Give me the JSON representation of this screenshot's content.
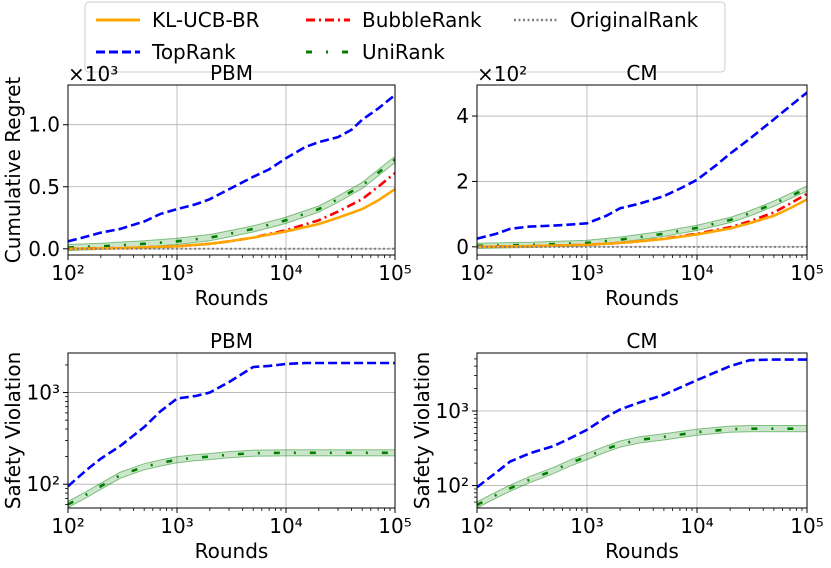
{
  "legend": {
    "entries": [
      {
        "label": "KL-UCB-BR",
        "color": "#ffa500",
        "dash": "solid"
      },
      {
        "label": "TopRank",
        "color": "#0000ff",
        "dash": "dashed"
      },
      {
        "label": "BubbleRank",
        "color": "#ff0000",
        "dash": "dashdot"
      },
      {
        "label": "UniRank",
        "color": "#008000",
        "dash": "sparse"
      },
      {
        "label": "OriginalRank",
        "color": "#808080",
        "dash": "dotted"
      }
    ]
  },
  "chart_data": [
    {
      "type": "line",
      "title": "PBM",
      "xlabel": "Rounds",
      "ylabel": "Cumulative Regret",
      "xscale": "log",
      "xlim": [
        100,
        100000
      ],
      "ylim": [
        -0.05,
        1.32
      ],
      "multiplier": "×10³",
      "x_ticks": [
        "10²",
        "10³",
        "10⁴",
        "10⁵"
      ],
      "y_ticks": [
        "0.0",
        "0.5",
        "1.0"
      ],
      "y_tick_values": [
        0,
        0.5,
        1.0
      ],
      "grid": true,
      "series": [
        {
          "name": "TopRank",
          "x": [
            100,
            150,
            200,
            300,
            500,
            700,
            1000,
            1500,
            2000,
            3000,
            5000,
            7000,
            10000,
            15000,
            20000,
            30000,
            40000,
            50000,
            70000,
            100000
          ],
          "y": [
            0.06,
            0.1,
            0.13,
            0.16,
            0.22,
            0.28,
            0.32,
            0.36,
            0.4,
            0.48,
            0.58,
            0.64,
            0.73,
            0.82,
            0.86,
            0.9,
            0.96,
            1.04,
            1.13,
            1.24
          ]
        },
        {
          "name": "UniRank",
          "x": [
            100,
            200,
            500,
            1000,
            2000,
            3000,
            5000,
            10000,
            20000,
            30000,
            50000,
            100000
          ],
          "y": [
            0.01,
            0.02,
            0.04,
            0.06,
            0.09,
            0.12,
            0.16,
            0.23,
            0.32,
            0.4,
            0.51,
            0.72
          ],
          "band": 0.025
        },
        {
          "name": "BubbleRank",
          "x": [
            100,
            300,
            1000,
            2000,
            3000,
            5000,
            10000,
            20000,
            30000,
            50000,
            70000,
            100000
          ],
          "y": [
            0.0,
            0.005,
            0.02,
            0.04,
            0.06,
            0.09,
            0.15,
            0.23,
            0.3,
            0.4,
            0.5,
            0.61
          ]
        },
        {
          "name": "KL-UCB-BR",
          "x": [
            100,
            300,
            1000,
            2000,
            3000,
            5000,
            10000,
            20000,
            30000,
            50000,
            70000,
            100000
          ],
          "y": [
            0.0,
            0.005,
            0.02,
            0.04,
            0.06,
            0.09,
            0.14,
            0.2,
            0.25,
            0.32,
            0.39,
            0.48
          ]
        },
        {
          "name": "OriginalRank",
          "x": [
            100,
            100000
          ],
          "y": [
            0.0,
            0.0
          ]
        }
      ]
    },
    {
      "type": "line",
      "title": "CM",
      "xlabel": "Rounds",
      "ylabel": "",
      "xscale": "log",
      "xlim": [
        100,
        100000
      ],
      "ylim": [
        -0.25,
        4.95
      ],
      "multiplier": "×10²",
      "x_ticks": [
        "10²",
        "10³",
        "10⁴",
        "10⁵"
      ],
      "y_ticks": [
        "0",
        "2",
        "4"
      ],
      "y_tick_values": [
        0,
        2,
        4
      ],
      "grid": true,
      "series": [
        {
          "name": "TopRank",
          "x": [
            100,
            150,
            200,
            300,
            500,
            700,
            1000,
            1500,
            2000,
            3000,
            5000,
            7000,
            10000,
            15000,
            20000,
            30000,
            50000,
            70000,
            100000
          ],
          "y": [
            0.25,
            0.4,
            0.55,
            0.62,
            0.65,
            0.68,
            0.72,
            0.95,
            1.18,
            1.32,
            1.55,
            1.78,
            2.05,
            2.5,
            2.85,
            3.3,
            3.9,
            4.3,
            4.72
          ]
        },
        {
          "name": "UniRank",
          "x": [
            100,
            300,
            1000,
            2000,
            3000,
            5000,
            10000,
            20000,
            30000,
            50000,
            70000,
            100000
          ],
          "y": [
            0.03,
            0.06,
            0.12,
            0.22,
            0.3,
            0.4,
            0.58,
            0.82,
            1.02,
            1.32,
            1.55,
            1.78
          ],
          "band": 0.08
        },
        {
          "name": "BubbleRank",
          "x": [
            100,
            300,
            1000,
            2000,
            3000,
            5000,
            10000,
            20000,
            30000,
            50000,
            70000,
            100000
          ],
          "y": [
            0.0,
            0.02,
            0.06,
            0.12,
            0.17,
            0.25,
            0.4,
            0.6,
            0.78,
            1.05,
            1.32,
            1.62
          ]
        },
        {
          "name": "KL-UCB-BR",
          "x": [
            100,
            300,
            1000,
            2000,
            3000,
            5000,
            10000,
            20000,
            30000,
            50000,
            70000,
            100000
          ],
          "y": [
            0.0,
            0.02,
            0.06,
            0.12,
            0.17,
            0.24,
            0.38,
            0.56,
            0.72,
            0.95,
            1.18,
            1.45
          ]
        },
        {
          "name": "OriginalRank",
          "x": [
            100,
            100000
          ],
          "y": [
            0.0,
            0.0
          ]
        }
      ]
    },
    {
      "type": "line",
      "title": "PBM",
      "xlabel": "Rounds",
      "ylabel": "Safety Violation",
      "xscale": "log",
      "yscale": "log",
      "xlim": [
        100,
        100000
      ],
      "ylim": [
        55,
        2700
      ],
      "x_ticks": [
        "10²",
        "10³",
        "10⁴",
        "10⁵"
      ],
      "y_ticks": [
        "10²",
        "10³"
      ],
      "y_tick_values": [
        100,
        1000
      ],
      "grid": true,
      "series": [
        {
          "name": "TopRank",
          "x": [
            100,
            150,
            200,
            300,
            500,
            700,
            1000,
            1500,
            2000,
            3000,
            5000,
            7000,
            10000,
            15000,
            30000,
            100000
          ],
          "y": [
            95,
            145,
            190,
            260,
            420,
            620,
            860,
            920,
            1000,
            1300,
            1900,
            1950,
            2050,
            2100,
            2100,
            2100
          ]
        },
        {
          "name": "UniRank",
          "x": [
            100,
            150,
            200,
            300,
            500,
            700,
            1000,
            1500,
            2000,
            3000,
            5000,
            10000,
            30000,
            100000
          ],
          "y": [
            60,
            78,
            95,
            125,
            155,
            170,
            185,
            195,
            200,
            210,
            218,
            220,
            220,
            220
          ],
          "band_ratio": 1.08
        }
      ]
    },
    {
      "type": "line",
      "title": "CM",
      "xlabel": "Rounds",
      "ylabel": "Safety Violation",
      "xscale": "log",
      "yscale": "log",
      "xlim": [
        100,
        100000
      ],
      "ylim": [
        50,
        6000
      ],
      "x_ticks": [
        "10²",
        "10³",
        "10⁴",
        "10⁵"
      ],
      "y_ticks": [
        "10²",
        "10³"
      ],
      "y_tick_values": [
        100,
        1000
      ],
      "grid": true,
      "series": [
        {
          "name": "TopRank",
          "x": [
            100,
            150,
            200,
            300,
            500,
            700,
            1000,
            1500,
            2000,
            3000,
            5000,
            10000,
            20000,
            30000,
            50000,
            100000
          ],
          "y": [
            95,
            150,
            210,
            270,
            340,
            430,
            560,
            830,
            1050,
            1300,
            1650,
            2600,
            4000,
            4800,
            4900,
            4900
          ]
        },
        {
          "name": "UniRank",
          "x": [
            100,
            150,
            200,
            300,
            500,
            700,
            1000,
            1500,
            2000,
            3000,
            5000,
            10000,
            20000,
            30000,
            100000
          ],
          "y": [
            55,
            75,
            92,
            120,
            160,
            200,
            245,
            310,
            360,
            410,
            450,
            520,
            570,
            580,
            580
          ],
          "band_ratio": 1.1
        }
      ]
    }
  ]
}
